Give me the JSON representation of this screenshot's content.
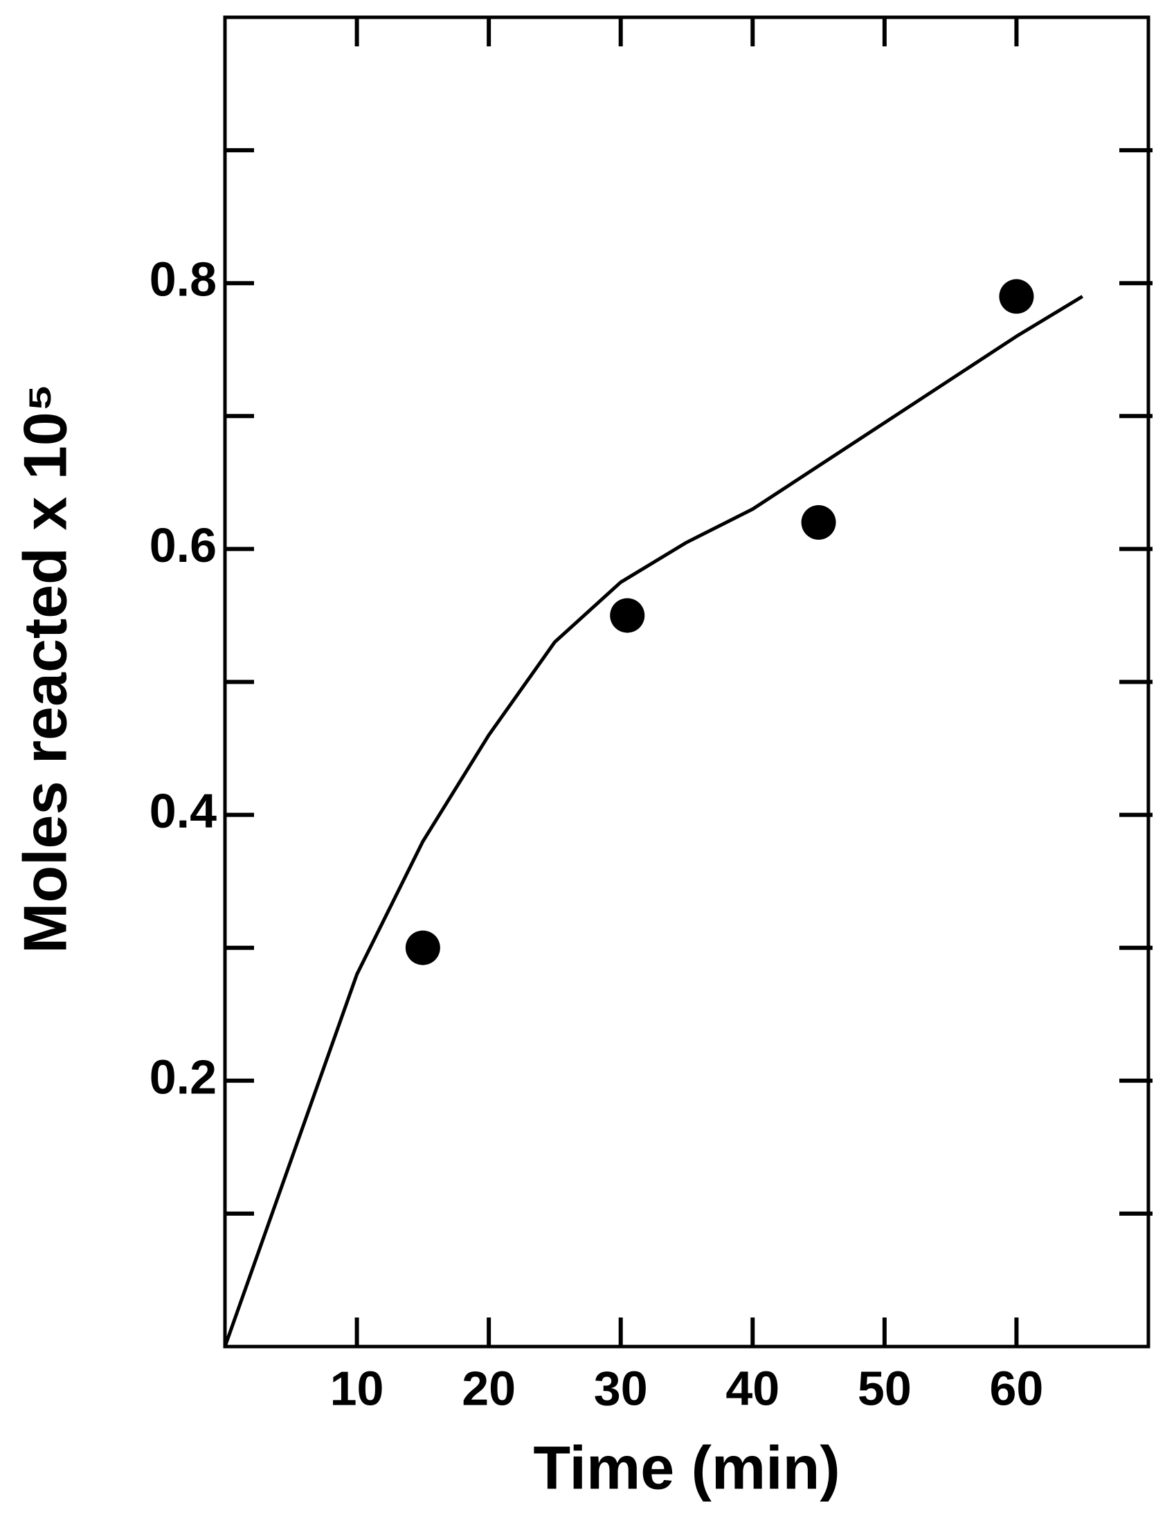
{
  "chart_data": {
    "type": "scatter",
    "x_label": "Time (min)",
    "y_label": "Moles reacted x 10⁵",
    "xlim": [
      0,
      70
    ],
    "ylim": [
      0,
      1.0
    ],
    "xticks": [
      10,
      20,
      30,
      40,
      50,
      60
    ],
    "yticks": [
      0.2,
      0.4,
      0.6,
      0.8
    ],
    "yminorticks": [
      0.1,
      0.3,
      0.5,
      0.7,
      0.9
    ],
    "grid": false,
    "series": [
      {
        "type": "scatter",
        "color": "#000000",
        "x": [
          15,
          30.5,
          45,
          60
        ],
        "values": [
          0.3,
          0.55,
          0.62,
          0.79
        ]
      },
      {
        "type": "line",
        "color": "#000000",
        "x": [
          0,
          10,
          15,
          20,
          25,
          30,
          35,
          40,
          50,
          60,
          65
        ],
        "values": [
          0,
          0.28,
          0.38,
          0.46,
          0.53,
          0.575,
          0.605,
          0.63,
          0.695,
          0.76,
          0.79
        ]
      }
    ]
  }
}
